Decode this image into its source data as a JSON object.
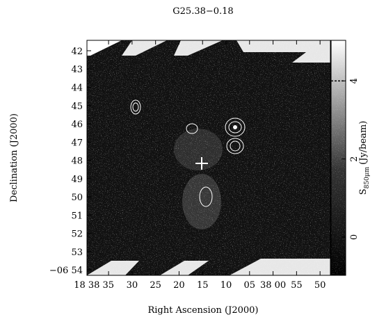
{
  "chart_data": {
    "type": "image",
    "title": "G25.38−0.18",
    "xlabel": "Right Ascension (J2000)",
    "ylabel": "Declination (J2000)",
    "xlim": [
      39.6,
      -12.2
    ],
    "xticks": [
      {
        "value": 35,
        "label": "18 38 35"
      },
      30,
      25,
      20,
      15,
      10,
      {
        "value": 5,
        "label": "05"
      },
      {
        "value": 0,
        "label": "38 00"
      },
      {
        "value": -5,
        "label": "55"
      },
      {
        "value": -10,
        "label": "50"
      }
    ],
    "ylim": [
      54.3,
      41.43
    ],
    "yticks": [
      42,
      43,
      44,
      45,
      46,
      47,
      48,
      49,
      50,
      51,
      52,
      53,
      {
        "value": 54,
        "label": "−06 54"
      }
    ],
    "colorbar": {
      "label": "S",
      "label_sub": "850μm",
      "label_unit": "(Jy/beam)",
      "lim": [
        -0.98,
        5.04
      ],
      "ticks": [
        0,
        2,
        4
      ],
      "level": 4
    }
  }
}
